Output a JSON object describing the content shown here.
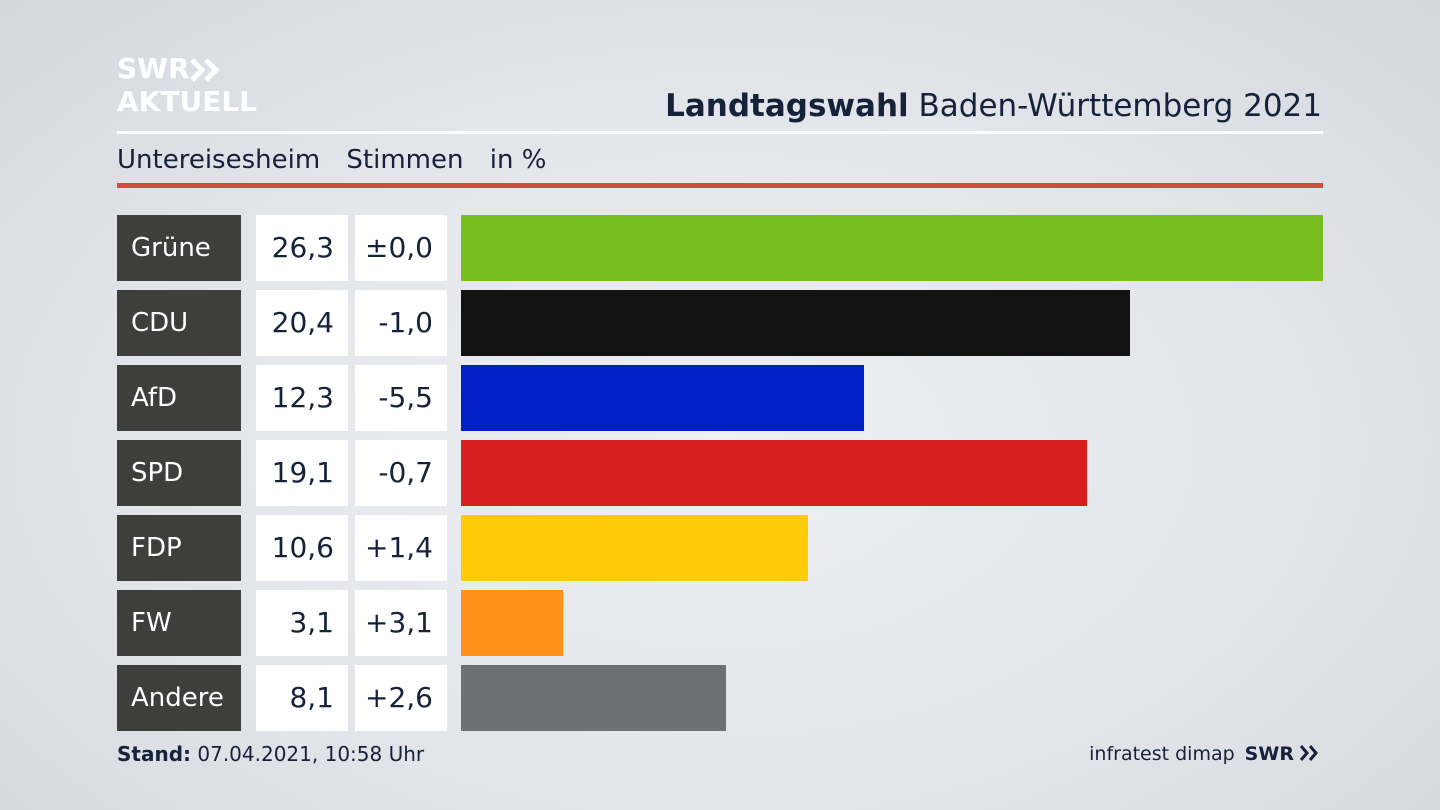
{
  "logo": {
    "line1": "SWR",
    "line2": "AKTUELL"
  },
  "header": {
    "title_bold": "Landtagswahl",
    "title_rest": " Baden-Württemberg 2021"
  },
  "subtitle": {
    "place": "Untereisesheim",
    "metric": "Stimmen",
    "unit": "in %"
  },
  "chart_data": {
    "type": "bar",
    "orientation": "horizontal",
    "categories": [
      "Grüne",
      "CDU",
      "AfD",
      "SPD",
      "FDP",
      "FW",
      "Andere"
    ],
    "values": [
      26.3,
      20.4,
      12.3,
      19.1,
      10.6,
      3.1,
      8.1
    ],
    "value_labels": [
      "26,3",
      "20,4",
      "12,3",
      "19,1",
      "10,6",
      "3,1",
      "8,1"
    ],
    "change_labels": [
      "±0,0",
      "-1,0",
      "-5,5",
      "-0,7",
      "+1,4",
      "+3,1",
      "+2,6"
    ],
    "colors": [
      "#78be1e",
      "#121212",
      "#0021c8",
      "#d71f1f",
      "#ffcb0a",
      "#ff9019",
      "#6f7072"
    ],
    "xlim": [
      0,
      26.3
    ],
    "grid": false,
    "legend": "none"
  },
  "footer": {
    "stand_label": "Stand:",
    "stand_value": " 07.04.2021, 10:58 Uhr",
    "source": "infratest dimap",
    "brand": "SWR"
  },
  "colors": {
    "accent_red": "#d24d3d",
    "party_label_bg": "#3e3e3c",
    "text_dark": "#16213a"
  }
}
